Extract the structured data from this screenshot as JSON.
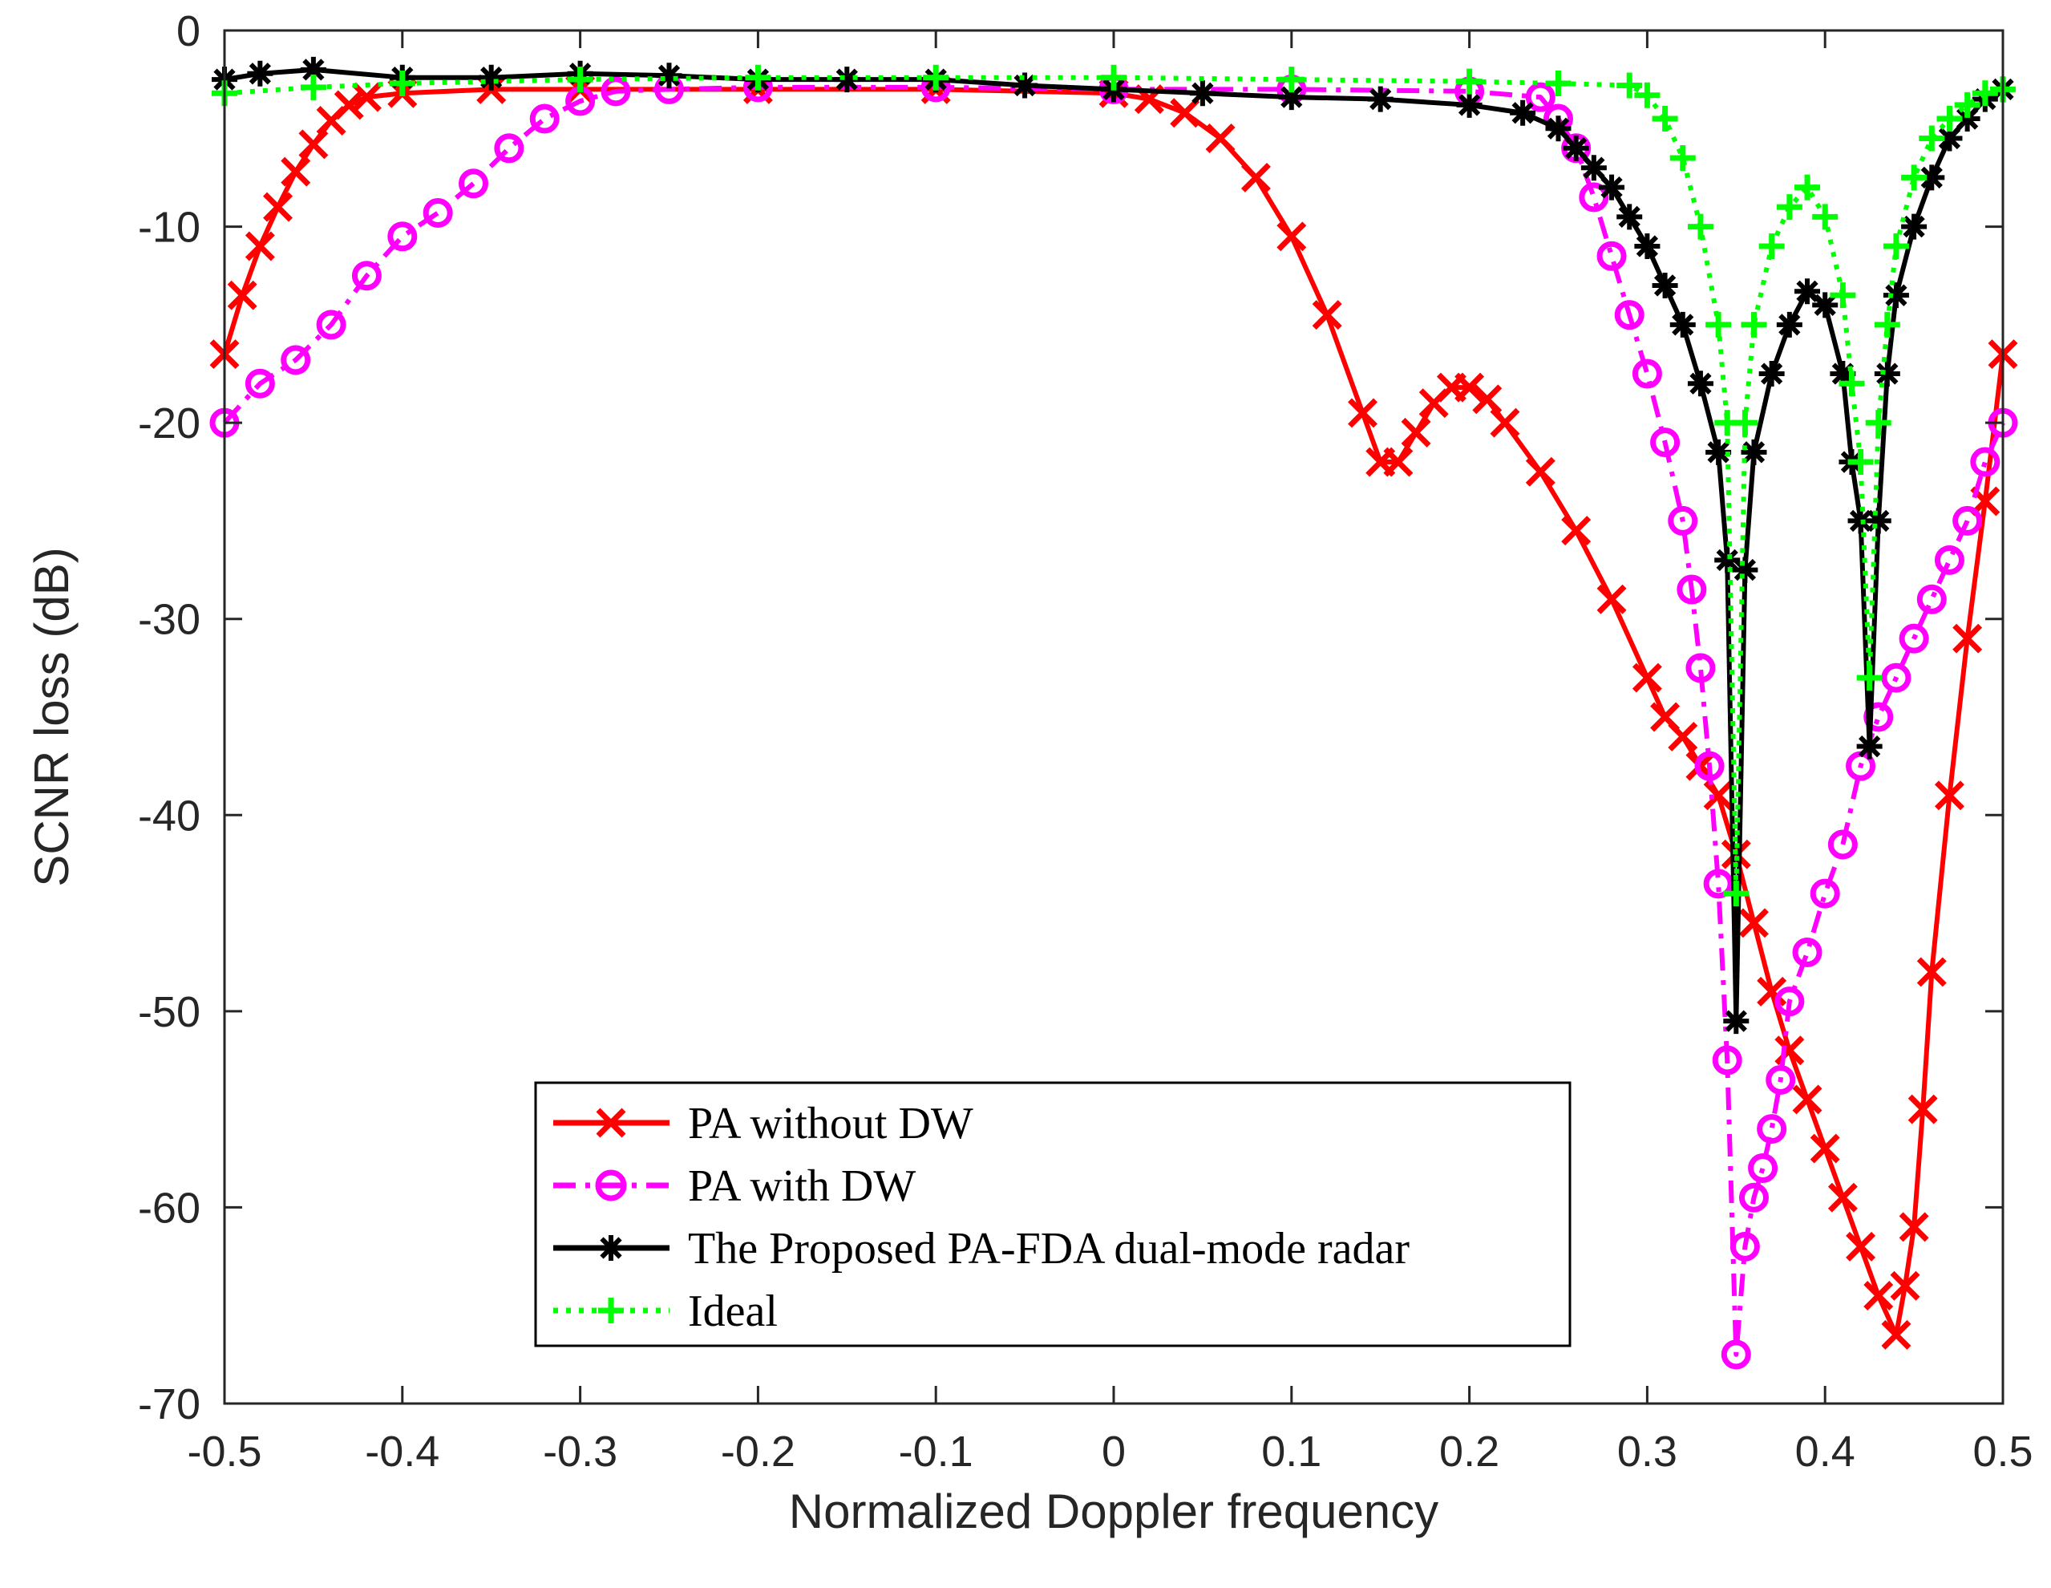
{
  "chart_data": {
    "type": "line",
    "title": "",
    "xlabel": "Normalized Doppler frequency",
    "ylabel": "SCNR  loss (dB)",
    "xlim": [
      -0.5,
      0.5
    ],
    "ylim": [
      -70,
      0
    ],
    "xticks": [
      -0.5,
      -0.4,
      -0.3,
      -0.2,
      -0.1,
      0,
      0.1,
      0.2,
      0.3,
      0.4,
      0.5
    ],
    "yticks": [
      0,
      -10,
      -20,
      -30,
      -40,
      -50,
      -60,
      -70
    ],
    "xtick_labels": [
      "-0.5",
      "-0.4",
      "-0.3",
      "-0.2",
      "-0.1",
      "0",
      "0.1",
      "0.2",
      "0.3",
      "0.4",
      "0.5"
    ],
    "ytick_labels": [
      "0",
      "-10",
      "-20",
      "-30",
      "-40",
      "-50",
      "-60",
      "-70"
    ],
    "grid": false,
    "legend_position": "bottom-center",
    "series": [
      {
        "name": "PA without DW",
        "color": "#ff0000",
        "marker": "x",
        "linestyle": "solid",
        "points": [
          [
            -0.5,
            -16.5
          ],
          [
            -0.49,
            -13.5
          ],
          [
            -0.48,
            -11
          ],
          [
            -0.47,
            -9
          ],
          [
            -0.46,
            -7.2
          ],
          [
            -0.45,
            -5.8
          ],
          [
            -0.44,
            -4.6
          ],
          [
            -0.43,
            -3.8
          ],
          [
            -0.42,
            -3.4
          ],
          [
            -0.4,
            -3.2
          ],
          [
            -0.35,
            -3.0
          ],
          [
            -0.3,
            -3.0
          ],
          [
            -0.2,
            -3.0
          ],
          [
            -0.1,
            -3.0
          ],
          [
            0,
            -3.2
          ],
          [
            0.02,
            -3.5
          ],
          [
            0.04,
            -4.2
          ],
          [
            0.06,
            -5.5
          ],
          [
            0.08,
            -7.5
          ],
          [
            0.1,
            -10.5
          ],
          [
            0.12,
            -14.5
          ],
          [
            0.14,
            -19.5
          ],
          [
            0.15,
            -22
          ],
          [
            0.16,
            -22
          ],
          [
            0.17,
            -20.5
          ],
          [
            0.18,
            -19
          ],
          [
            0.19,
            -18.2
          ],
          [
            0.2,
            -18.2
          ],
          [
            0.21,
            -18.8
          ],
          [
            0.22,
            -20
          ],
          [
            0.24,
            -22.5
          ],
          [
            0.26,
            -25.5
          ],
          [
            0.28,
            -29
          ],
          [
            0.3,
            -33
          ],
          [
            0.31,
            -35
          ],
          [
            0.32,
            -36
          ],
          [
            0.33,
            -37.5
          ],
          [
            0.34,
            -39
          ],
          [
            0.35,
            -42
          ],
          [
            0.36,
            -45.5
          ],
          [
            0.37,
            -49
          ],
          [
            0.38,
            -52
          ],
          [
            0.39,
            -54.5
          ],
          [
            0.4,
            -57
          ],
          [
            0.41,
            -59.5
          ],
          [
            0.42,
            -62
          ],
          [
            0.43,
            -64.5
          ],
          [
            0.44,
            -66.5
          ],
          [
            0.445,
            -64
          ],
          [
            0.45,
            -61
          ],
          [
            0.455,
            -55
          ],
          [
            0.46,
            -48
          ],
          [
            0.47,
            -39
          ],
          [
            0.48,
            -31
          ],
          [
            0.49,
            -24
          ],
          [
            0.5,
            -16.5
          ]
        ]
      },
      {
        "name": "PA with DW",
        "color": "#ff00ff",
        "marker": "o",
        "linestyle": "dashdot",
        "points": [
          [
            -0.5,
            -20
          ],
          [
            -0.48,
            -18
          ],
          [
            -0.46,
            -16.8
          ],
          [
            -0.44,
            -15
          ],
          [
            -0.42,
            -12.5
          ],
          [
            -0.4,
            -10.5
          ],
          [
            -0.38,
            -9.3
          ],
          [
            -0.36,
            -7.8
          ],
          [
            -0.34,
            -6
          ],
          [
            -0.32,
            -4.5
          ],
          [
            -0.3,
            -3.6
          ],
          [
            -0.28,
            -3.1
          ],
          [
            -0.25,
            -3.0
          ],
          [
            -0.2,
            -2.9
          ],
          [
            -0.1,
            -2.9
          ],
          [
            0,
            -3.0
          ],
          [
            0.1,
            -3.0
          ],
          [
            0.2,
            -3.1
          ],
          [
            0.24,
            -3.4
          ],
          [
            0.25,
            -4.5
          ],
          [
            0.26,
            -6
          ],
          [
            0.27,
            -8.5
          ],
          [
            0.28,
            -11.5
          ],
          [
            0.29,
            -14.5
          ],
          [
            0.3,
            -17.5
          ],
          [
            0.31,
            -21
          ],
          [
            0.32,
            -25
          ],
          [
            0.325,
            -28.5
          ],
          [
            0.33,
            -32.5
          ],
          [
            0.335,
            -37.5
          ],
          [
            0.34,
            -43.5
          ],
          [
            0.345,
            -52.5
          ],
          [
            0.35,
            -67.5
          ],
          [
            0.355,
            -62
          ],
          [
            0.36,
            -59.5
          ],
          [
            0.365,
            -58
          ],
          [
            0.37,
            -56
          ],
          [
            0.375,
            -53.5
          ],
          [
            0.38,
            -49.5
          ],
          [
            0.39,
            -47
          ],
          [
            0.4,
            -44
          ],
          [
            0.41,
            -41.5
          ],
          [
            0.42,
            -37.5
          ],
          [
            0.43,
            -35
          ],
          [
            0.44,
            -33
          ],
          [
            0.45,
            -31
          ],
          [
            0.46,
            -29
          ],
          [
            0.47,
            -27
          ],
          [
            0.48,
            -25
          ],
          [
            0.49,
            -22
          ],
          [
            0.5,
            -20
          ]
        ]
      },
      {
        "name": "The Proposed PA-FDA dual-mode radar",
        "color": "#000000",
        "marker": "*",
        "linestyle": "solid",
        "points": [
          [
            -0.5,
            -2.5
          ],
          [
            -0.48,
            -2.2
          ],
          [
            -0.45,
            -2
          ],
          [
            -0.4,
            -2.4
          ],
          [
            -0.35,
            -2.4
          ],
          [
            -0.3,
            -2.2
          ],
          [
            -0.25,
            -2.3
          ],
          [
            -0.2,
            -2.5
          ],
          [
            -0.15,
            -2.5
          ],
          [
            -0.1,
            -2.5
          ],
          [
            -0.05,
            -2.8
          ],
          [
            0,
            -3.0
          ],
          [
            0.05,
            -3.2
          ],
          [
            0.1,
            -3.4
          ],
          [
            0.15,
            -3.5
          ],
          [
            0.2,
            -3.8
          ],
          [
            0.23,
            -4.2
          ],
          [
            0.25,
            -5.0
          ],
          [
            0.26,
            -6
          ],
          [
            0.27,
            -7
          ],
          [
            0.28,
            -8
          ],
          [
            0.29,
            -9.5
          ],
          [
            0.3,
            -11
          ],
          [
            0.31,
            -13
          ],
          [
            0.32,
            -15
          ],
          [
            0.33,
            -18
          ],
          [
            0.34,
            -21.5
          ],
          [
            0.345,
            -27
          ],
          [
            0.35,
            -50.5
          ],
          [
            0.355,
            -27.5
          ],
          [
            0.36,
            -21.5
          ],
          [
            0.37,
            -17.5
          ],
          [
            0.38,
            -15
          ],
          [
            0.39,
            -13.3
          ],
          [
            0.4,
            -14
          ],
          [
            0.41,
            -17.5
          ],
          [
            0.415,
            -22
          ],
          [
            0.42,
            -25
          ],
          [
            0.425,
            -36.5
          ],
          [
            0.43,
            -25
          ],
          [
            0.435,
            -17.5
          ],
          [
            0.44,
            -13.5
          ],
          [
            0.45,
            -10
          ],
          [
            0.46,
            -7.5
          ],
          [
            0.47,
            -5.5
          ],
          [
            0.48,
            -4.5
          ],
          [
            0.49,
            -3.5
          ],
          [
            0.5,
            -3.0
          ]
        ]
      },
      {
        "name": "Ideal",
        "color": "#00ff00",
        "marker": "+",
        "linestyle": "dotted",
        "points": [
          [
            -0.5,
            -3.2
          ],
          [
            -0.45,
            -2.9
          ],
          [
            -0.4,
            -2.7
          ],
          [
            -0.3,
            -2.5
          ],
          [
            -0.2,
            -2.4
          ],
          [
            -0.1,
            -2.4
          ],
          [
            0,
            -2.4
          ],
          [
            0.1,
            -2.5
          ],
          [
            0.2,
            -2.6
          ],
          [
            0.25,
            -2.7
          ],
          [
            0.29,
            -2.8
          ],
          [
            0.3,
            -3.3
          ],
          [
            0.31,
            -4.5
          ],
          [
            0.32,
            -6.5
          ],
          [
            0.33,
            -10
          ],
          [
            0.34,
            -15
          ],
          [
            0.345,
            -20
          ],
          [
            0.35,
            -44
          ],
          [
            0.355,
            -20
          ],
          [
            0.36,
            -15
          ],
          [
            0.37,
            -11
          ],
          [
            0.38,
            -9
          ],
          [
            0.39,
            -8
          ],
          [
            0.4,
            -9.5
          ],
          [
            0.41,
            -13.5
          ],
          [
            0.415,
            -18
          ],
          [
            0.42,
            -22
          ],
          [
            0.425,
            -33
          ],
          [
            0.43,
            -20
          ],
          [
            0.435,
            -15
          ],
          [
            0.44,
            -11
          ],
          [
            0.45,
            -7.5
          ],
          [
            0.46,
            -5.5
          ],
          [
            0.47,
            -4.5
          ],
          [
            0.48,
            -3.8
          ],
          [
            0.49,
            -3.2
          ],
          [
            0.5,
            -3.0
          ]
        ]
      }
    ]
  }
}
